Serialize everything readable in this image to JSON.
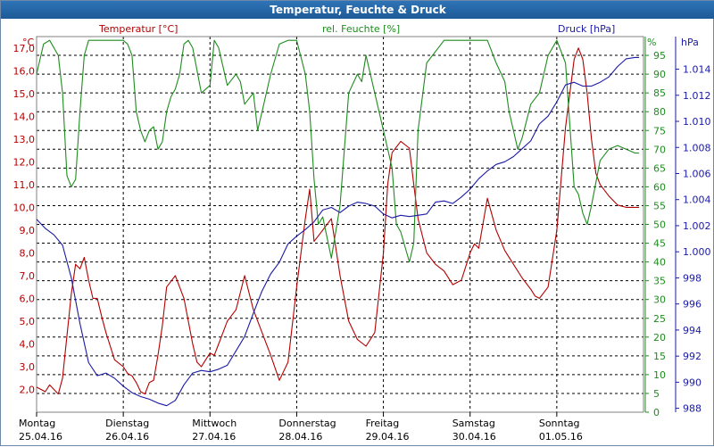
{
  "window": {
    "title": "Temperatur, Feuchte & Druck"
  },
  "colors": {
    "temperature": "#b40000",
    "humidity": "#1e8c1e",
    "pressure": "#1a1aa6",
    "grid": "#000000",
    "titlebar": "#1d5a97"
  },
  "chart_data": {
    "type": "line",
    "title": "Temperatur, Feuchte & Druck",
    "grid": true,
    "x_ticks": [
      {
        "day": "Montag",
        "date": "25.04.16"
      },
      {
        "day": "Dienstag",
        "date": "26.04.16"
      },
      {
        "day": "Mittwoch",
        "date": "27.04.16"
      },
      {
        "day": "Donnerstag",
        "date": "28.04.16"
      },
      {
        "day": "Freitag",
        "date": "29.04.16"
      },
      {
        "day": "Samstag",
        "date": "30.04.16"
      },
      {
        "day": "Sonntag",
        "date": "01.05.16"
      }
    ],
    "x_range": [
      0,
      7
    ],
    "axes": {
      "temperature": {
        "label": "Temperatur [°C]",
        "unit": "°C",
        "range": [
          1.0,
          17.5
        ],
        "ticks": [
          "2,0",
          "3,0",
          "4,0",
          "5,0",
          "6,0",
          "7,0",
          "8,0",
          "9,0",
          "10,0",
          "11,0",
          "12,0",
          "13,0",
          "14,0",
          "15,0",
          "16,0",
          "17,0"
        ]
      },
      "humidity": {
        "label": "rel. Feuchte [%]",
        "unit": "%",
        "range": [
          0,
          100
        ],
        "ticks": [
          "0",
          "5",
          "10",
          "15",
          "20",
          "25",
          "30",
          "35",
          "40",
          "45",
          "50",
          "55",
          "60",
          "65",
          "70",
          "75",
          "80",
          "85",
          "90",
          "95"
        ]
      },
      "pressure": {
        "label": "Druck [hPa]",
        "unit": "hPa",
        "range": [
          987.7,
          1016.5
        ],
        "ticks": [
          "988",
          "990",
          "992",
          "994",
          "996",
          "998",
          "1.000",
          "1.002",
          "1.004",
          "1.006",
          "1.008",
          "1.010",
          "1.012",
          "1.014"
        ]
      }
    },
    "series": [
      {
        "name": "Temperatur [°C]",
        "axis": "temperature",
        "x": [
          0,
          0.1,
          0.15,
          0.2,
          0.25,
          0.3,
          0.4,
          0.45,
          0.5,
          0.55,
          0.6,
          0.65,
          0.7,
          0.75,
          0.8,
          0.9,
          1.0,
          1.05,
          1.1,
          1.15,
          1.2,
          1.25,
          1.3,
          1.35,
          1.4,
          1.45,
          1.5,
          1.6,
          1.7,
          1.8,
          1.85,
          1.9,
          1.95,
          2.0,
          2.05,
          2.1,
          2.2,
          2.3,
          2.4,
          2.5,
          2.6,
          2.7,
          2.8,
          2.9,
          3.0,
          3.1,
          3.15,
          3.2,
          3.3,
          3.4,
          3.5,
          3.6,
          3.7,
          3.8,
          3.9,
          4.0,
          4.05,
          4.1,
          4.2,
          4.3,
          4.35,
          4.4,
          4.5,
          4.6,
          4.7,
          4.8,
          4.9,
          5.0,
          5.05,
          5.1,
          5.2,
          5.3,
          5.4,
          5.5,
          5.6,
          5.7,
          5.75,
          5.8,
          5.9,
          6.0,
          6.1,
          6.2,
          6.25,
          6.3,
          6.35,
          6.4,
          6.45,
          6.5,
          6.6,
          6.7,
          6.8,
          6.9,
          6.95
        ],
        "values": [
          2.1,
          1.9,
          2.2,
          2.0,
          1.8,
          2.5,
          6.2,
          7.5,
          7.3,
          7.8,
          6.8,
          6.0,
          6.0,
          5.2,
          4.5,
          3.3,
          3.0,
          2.7,
          2.6,
          2.3,
          1.9,
          1.8,
          2.3,
          2.4,
          3.5,
          4.8,
          6.5,
          7.0,
          6.0,
          4.0,
          3.2,
          3.0,
          3.3,
          3.6,
          3.5,
          4.0,
          5.0,
          5.5,
          7.0,
          5.5,
          4.5,
          3.5,
          2.4,
          3.2,
          6.5,
          9.5,
          10.8,
          8.5,
          9.0,
          9.5,
          7.0,
          5.0,
          4.2,
          3.9,
          4.5,
          8.0,
          11.0,
          12.4,
          12.9,
          12.6,
          11.0,
          9.5,
          8.0,
          7.5,
          7.2,
          6.6,
          6.8,
          8.0,
          8.4,
          8.2,
          10.4,
          9.0,
          8.1,
          7.5,
          6.9,
          6.4,
          6.1,
          6.0,
          6.5,
          9.0,
          13.5,
          16.5,
          17.0,
          16.5,
          15.0,
          13.0,
          11.5,
          11.0,
          10.5,
          10.1,
          10.0,
          10.0,
          10.0
        ]
      },
      {
        "name": "rel. Feuchte [%]",
        "axis": "humidity",
        "x": [
          0,
          0.08,
          0.15,
          0.25,
          0.3,
          0.35,
          0.4,
          0.45,
          0.5,
          0.55,
          0.6,
          0.7,
          0.8,
          0.85,
          0.9,
          1.0,
          1.05,
          1.1,
          1.15,
          1.2,
          1.25,
          1.3,
          1.35,
          1.4,
          1.45,
          1.5,
          1.55,
          1.6,
          1.65,
          1.7,
          1.75,
          1.8,
          1.9,
          2.0,
          2.05,
          2.1,
          2.2,
          2.3,
          2.35,
          2.4,
          2.5,
          2.55,
          2.6,
          2.7,
          2.8,
          2.9,
          3.0,
          3.1,
          3.15,
          3.2,
          3.25,
          3.3,
          3.4,
          3.5,
          3.6,
          3.7,
          3.75,
          3.8,
          3.85,
          3.9,
          4.0,
          4.1,
          4.15,
          4.2,
          4.3,
          4.35,
          4.4,
          4.5,
          4.6,
          4.7,
          4.8,
          4.9,
          5.0,
          5.1,
          5.2,
          5.3,
          5.4,
          5.45,
          5.5,
          5.55,
          5.6,
          5.7,
          5.8,
          5.9,
          6.0,
          6.1,
          6.2,
          6.25,
          6.3,
          6.35,
          6.4,
          6.5,
          6.6,
          6.7,
          6.8,
          6.9,
          6.95
        ],
        "values": [
          90,
          98,
          99,
          95,
          85,
          63,
          60,
          62,
          80,
          95,
          99,
          99,
          99,
          99,
          99,
          99,
          98,
          95,
          80,
          75,
          72,
          75,
          76,
          70,
          72,
          80,
          84,
          86,
          90,
          98,
          99,
          97,
          85,
          87,
          99,
          97,
          87,
          90,
          88,
          82,
          85,
          75,
          80,
          90,
          98,
          99,
          99,
          90,
          80,
          62,
          50,
          52,
          41,
          55,
          85,
          90,
          88,
          95,
          90,
          85,
          75,
          65,
          50,
          48,
          40,
          45,
          75,
          93,
          96,
          99,
          99,
          99,
          99,
          99,
          99,
          93,
          88,
          80,
          75,
          70,
          73,
          82,
          85,
          95,
          99,
          93,
          60,
          58,
          53,
          50,
          55,
          67,
          70,
          71,
          70,
          69,
          69
        ]
      },
      {
        "name": "Druck [hPa]",
        "axis": "pressure",
        "x": [
          0,
          0.1,
          0.2,
          0.3,
          0.4,
          0.5,
          0.6,
          0.7,
          0.8,
          0.9,
          1.0,
          1.1,
          1.2,
          1.3,
          1.4,
          1.5,
          1.6,
          1.7,
          1.8,
          1.9,
          2.0,
          2.1,
          2.2,
          2.3,
          2.4,
          2.5,
          2.6,
          2.7,
          2.8,
          2.9,
          3.0,
          3.1,
          3.2,
          3.3,
          3.4,
          3.5,
          3.6,
          3.7,
          3.8,
          3.9,
          4.0,
          4.1,
          4.2,
          4.3,
          4.4,
          4.5,
          4.6,
          4.7,
          4.8,
          4.9,
          5.0,
          5.1,
          5.2,
          5.3,
          5.4,
          5.5,
          5.6,
          5.7,
          5.8,
          5.9,
          6.0,
          6.1,
          6.2,
          6.3,
          6.4,
          6.5,
          6.6,
          6.7,
          6.8,
          6.9,
          6.95
        ],
        "values": [
          1002.5,
          1001.8,
          1001.3,
          1000.5,
          998.0,
          994.5,
          991.5,
          990.5,
          990.7,
          990.3,
          989.7,
          989.2,
          988.9,
          988.7,
          988.4,
          988.2,
          988.6,
          989.8,
          990.7,
          990.9,
          990.8,
          991.0,
          991.3,
          992.4,
          993.5,
          995.3,
          997.0,
          998.3,
          999.2,
          1000.6,
          1001.2,
          1001.7,
          1002.3,
          1003.2,
          1003.4,
          1003.0,
          1003.5,
          1003.8,
          1003.7,
          1003.5,
          1002.9,
          1002.6,
          1002.8,
          1002.7,
          1002.8,
          1002.9,
          1003.8,
          1003.9,
          1003.7,
          1004.2,
          1004.8,
          1005.6,
          1006.2,
          1006.7,
          1006.9,
          1007.3,
          1007.9,
          1008.5,
          1009.8,
          1010.4,
          1011.5,
          1012.8,
          1013.0,
          1012.7,
          1012.7,
          1013.0,
          1013.4,
          1014.2,
          1014.8,
          1014.9,
          1014.9
        ]
      }
    ]
  }
}
